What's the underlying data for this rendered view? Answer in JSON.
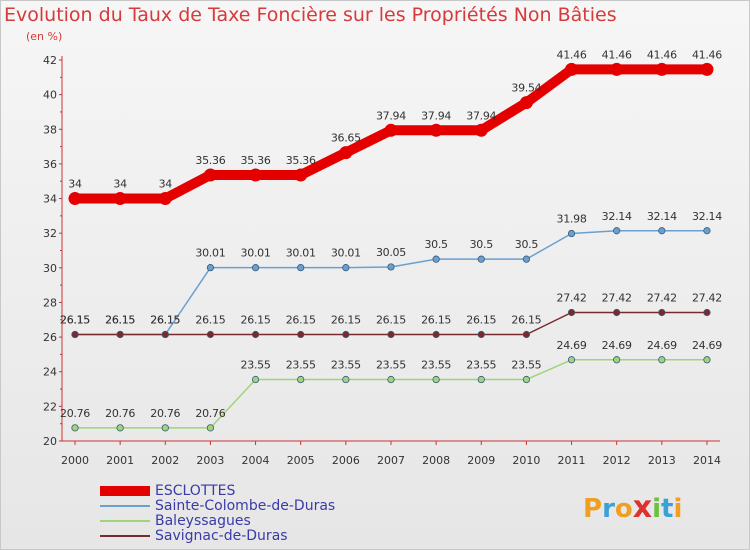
{
  "title": "Evolution du Taux de Taxe Foncière sur les Propriétés Non Bâties",
  "subtitle": "(en %)",
  "logo_text": "Proxiti",
  "chart_data": {
    "type": "line",
    "title": "Evolution du Taux de Taxe Foncière sur les Propriétés Non Bâties",
    "ylabel": "(en %)",
    "xlabel": "",
    "ylim": [
      20,
      42
    ],
    "yticks": [
      20,
      22,
      24,
      26,
      28,
      30,
      32,
      34,
      36,
      38,
      40,
      42
    ],
    "grid": false,
    "legend_position": "bottom-left",
    "x": [
      "2000",
      "2001",
      "2002",
      "2003",
      "2004",
      "2005",
      "2006",
      "2007",
      "2008",
      "2009",
      "2010",
      "2011",
      "2012",
      "2013",
      "2014"
    ],
    "series": [
      {
        "name": "ESCLOTTES",
        "color": "#e50000",
        "values": [
          34,
          34,
          34,
          35.36,
          35.36,
          35.36,
          36.65,
          37.94,
          37.94,
          37.94,
          39.54,
          41.46,
          41.46,
          41.46,
          41.46
        ],
        "labels": [
          "34",
          "34",
          "34",
          "35.36",
          "35.36",
          "35.36",
          "36.65",
          "37.94",
          "37.94",
          "37.94",
          "39.54",
          "41.46",
          "41.46",
          "41.46",
          "41.46"
        ]
      },
      {
        "name": "Sainte-Colombe-de-Duras",
        "color": "#6aa0d0",
        "values": [
          26.15,
          26.15,
          26.15,
          30.01,
          30.01,
          30.01,
          30.01,
          30.05,
          30.5,
          30.5,
          30.5,
          31.98,
          32.14,
          32.14,
          32.14
        ],
        "labels": [
          "26.15",
          "26.15",
          "26.15",
          "30.01",
          "30.01",
          "30.01",
          "30.01",
          "30.05",
          "30.5",
          "30.5",
          "30.5",
          "31.98",
          "32.14",
          "32.14",
          "32.14"
        ]
      },
      {
        "name": "Baleyssagues",
        "color": "#9fd47a",
        "values": [
          20.76,
          20.76,
          20.76,
          20.76,
          23.55,
          23.55,
          23.55,
          23.55,
          23.55,
          23.55,
          23.55,
          24.69,
          24.69,
          24.69,
          24.69
        ],
        "labels": [
          "20.76",
          "20.76",
          "20.76",
          "20.76",
          "23.55",
          "23.55",
          "23.55",
          "23.55",
          "23.55",
          "23.55",
          "23.55",
          "24.69",
          "24.69",
          "24.69",
          "24.69"
        ]
      },
      {
        "name": "Savignac-de-Duras",
        "color": "#7a2a2a",
        "values": [
          26.15,
          26.15,
          26.15,
          26.15,
          26.15,
          26.15,
          26.15,
          26.15,
          26.15,
          26.15,
          26.15,
          27.42,
          27.42,
          27.42,
          27.42
        ],
        "labels": [
          "26.15",
          "26.15",
          "26.15",
          "26.15",
          "26.15",
          "26.15",
          "26.15",
          "26.15",
          "26.15",
          "26.15",
          "26.15",
          "27.42",
          "27.42",
          "27.42",
          "27.42"
        ]
      }
    ]
  }
}
